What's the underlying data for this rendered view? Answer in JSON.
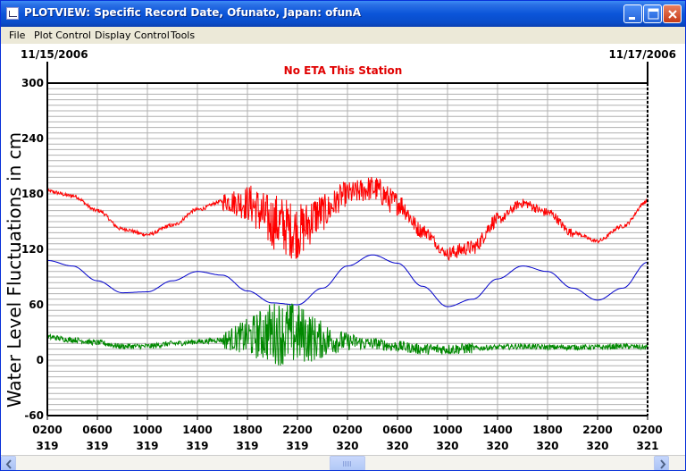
{
  "window": {
    "title": "PLOTVIEW: Specific Record Date, Ofunato, Japan: ofunA"
  },
  "menu": {
    "items": [
      "File",
      "Plot Control",
      "Display Control",
      "Tools"
    ]
  },
  "plot": {
    "start_date": "11/15/2006",
    "end_date": "11/17/2006",
    "status": "No ETA This Station",
    "status_color": "#e00000"
  },
  "chart_data": {
    "type": "line",
    "title": "No ETA This Station",
    "ylabel": "Water Level Fluctuations in cm",
    "xlabel": "",
    "ylim": [
      -60,
      300
    ],
    "y_ticks": [
      300,
      240,
      180,
      120,
      60,
      0,
      -60
    ],
    "x_tick_times": [
      "0200",
      "0600",
      "1000",
      "1400",
      "1800",
      "2200",
      "0200",
      "0600",
      "1000",
      "1400",
      "1800",
      "2200",
      "0200"
    ],
    "x_tick_days": [
      "319",
      "319",
      "319",
      "319",
      "319",
      "319",
      "320",
      "320",
      "320",
      "320",
      "320",
      "320",
      "321"
    ],
    "x_range_hours": [
      2,
      50
    ],
    "grid": true,
    "series": [
      {
        "color": "#ff0000",
        "x": [
          2,
          4,
          6,
          8,
          10,
          12,
          14,
          16,
          18,
          20,
          22,
          24,
          26,
          28,
          30,
          32,
          34,
          36,
          38,
          40,
          42,
          44,
          46,
          48,
          50
        ],
        "y": [
          183,
          178,
          162,
          142,
          136,
          146,
          163,
          172,
          170,
          150,
          140,
          160,
          180,
          186,
          170,
          140,
          116,
          122,
          152,
          170,
          160,
          138,
          129,
          145,
          172
        ]
      },
      {
        "color": "#0000cc",
        "x": [
          2,
          4,
          6,
          8,
          10,
          12,
          14,
          16,
          18,
          20,
          22,
          24,
          26,
          28,
          30,
          32,
          34,
          36,
          38,
          40,
          42,
          44,
          46,
          48,
          50
        ],
        "y": [
          108,
          102,
          86,
          73,
          74,
          86,
          96,
          92,
          75,
          62,
          60,
          78,
          102,
          114,
          105,
          80,
          58,
          66,
          88,
          102,
          96,
          78,
          65,
          78,
          106
        ]
      },
      {
        "color": "#008800",
        "x": [
          2,
          4,
          6,
          8,
          10,
          12,
          14,
          16,
          18,
          20,
          22,
          24,
          26,
          28,
          30,
          32,
          34,
          36,
          38,
          40,
          42,
          44,
          46,
          48,
          50
        ],
        "y": [
          25,
          22,
          19,
          15,
          15,
          18,
          20,
          22,
          25,
          30,
          28,
          22,
          20,
          18,
          15,
          12,
          12,
          13,
          14,
          15,
          14,
          14,
          14,
          15,
          14
        ]
      }
    ]
  }
}
